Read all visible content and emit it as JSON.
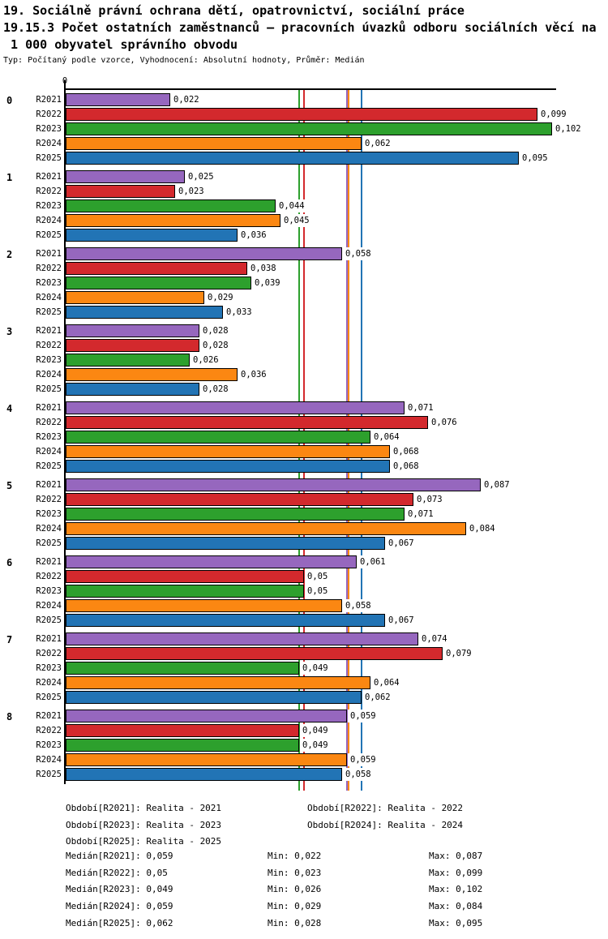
{
  "title": {
    "line1": "19. Sociálně právní ochrana dětí, opatrovnictví, sociální práce",
    "line2": "19.15.3 Počet ostatních zaměstnanců – pracovních úvazků odboru sociálních věcí na",
    "line3": " 1 000 obyvatel správního obvodu",
    "subtitle": "Typ: Počítaný podle vzorce, Vyhodnocení: Absolutní hodnoty, Průměr: Medián"
  },
  "chart_data": {
    "type": "bar",
    "orientation": "horizontal",
    "x_origin_label": "0",
    "xlim": [
      0,
      0.102
    ],
    "grid": false,
    "series": [
      {
        "name": "R2021",
        "color": "#9667be",
        "median": 0.059
      },
      {
        "name": "R2022",
        "color": "#d3292d",
        "median": 0.05
      },
      {
        "name": "R2023",
        "color": "#2da02d",
        "median": 0.049
      },
      {
        "name": "R2024",
        "color": "#fb8712",
        "median": 0.059
      },
      {
        "name": "R2025",
        "color": "#2274b5",
        "median": 0.062
      }
    ],
    "groups": [
      {
        "label": "0",
        "values": [
          0.022,
          0.099,
          0.102,
          0.062,
          0.095
        ],
        "value_labels": [
          "0,022",
          "0,099",
          "0,102",
          "0,062",
          "0,095"
        ]
      },
      {
        "label": "1",
        "values": [
          0.025,
          0.023,
          0.044,
          0.045,
          0.036
        ],
        "value_labels": [
          "0,025",
          "0,023",
          "0,044",
          "0,045",
          "0,036"
        ]
      },
      {
        "label": "2",
        "values": [
          0.058,
          0.038,
          0.039,
          0.029,
          0.033
        ],
        "value_labels": [
          "0,058",
          "0,038",
          "0,039",
          "0,029",
          "0,033"
        ]
      },
      {
        "label": "3",
        "values": [
          0.028,
          0.028,
          0.026,
          0.036,
          0.028
        ],
        "value_labels": [
          "0,028",
          "0,028",
          "0,026",
          "0,036",
          "0,028"
        ]
      },
      {
        "label": "4",
        "values": [
          0.071,
          0.076,
          0.064,
          0.068,
          0.068
        ],
        "value_labels": [
          "0,071",
          "0,076",
          "0,064",
          "0,068",
          "0,068"
        ]
      },
      {
        "label": "5",
        "values": [
          0.087,
          0.073,
          0.071,
          0.084,
          0.067
        ],
        "value_labels": [
          "0,087",
          "0,073",
          "0,071",
          "0,084",
          "0,067"
        ]
      },
      {
        "label": "6",
        "values": [
          0.061,
          0.05,
          0.05,
          0.058,
          0.067
        ],
        "value_labels": [
          "0,061",
          "0,05",
          "0,05",
          "0,058",
          "0,067"
        ]
      },
      {
        "label": "7",
        "values": [
          0.074,
          0.079,
          0.049,
          0.064,
          0.062
        ],
        "value_labels": [
          "0,074",
          "0,079",
          "0,049",
          "0,064",
          "0,062"
        ]
      },
      {
        "label": "8",
        "values": [
          0.059,
          0.049,
          0.049,
          0.059,
          0.058
        ],
        "value_labels": [
          "0,059",
          "0,049",
          "0,049",
          "0,059",
          "0,058"
        ]
      }
    ]
  },
  "legend": {
    "period_rows": [
      [
        "Období[R2021]: Realita - 2021",
        "Období[R2022]: Realita - 2022"
      ],
      [
        "Období[R2023]: Realita - 2023",
        "Období[R2024]: Realita - 2024"
      ],
      [
        "Období[R2025]: Realita - 2025"
      ]
    ],
    "stat_rows": [
      [
        "Medián[R2021]: 0,059",
        "Min: 0,022",
        "Max: 0,087"
      ],
      [
        "Medián[R2022]: 0,05",
        "Min: 0,023",
        "Max: 0,099"
      ],
      [
        "Medián[R2023]: 0,049",
        "Min: 0,026",
        "Max: 0,102"
      ],
      [
        "Medián[R2024]: 0,059",
        "Min: 0,029",
        "Max: 0,084"
      ],
      [
        "Medián[R2025]: 0,062",
        "Min: 0,028",
        "Max: 0,095"
      ]
    ]
  }
}
